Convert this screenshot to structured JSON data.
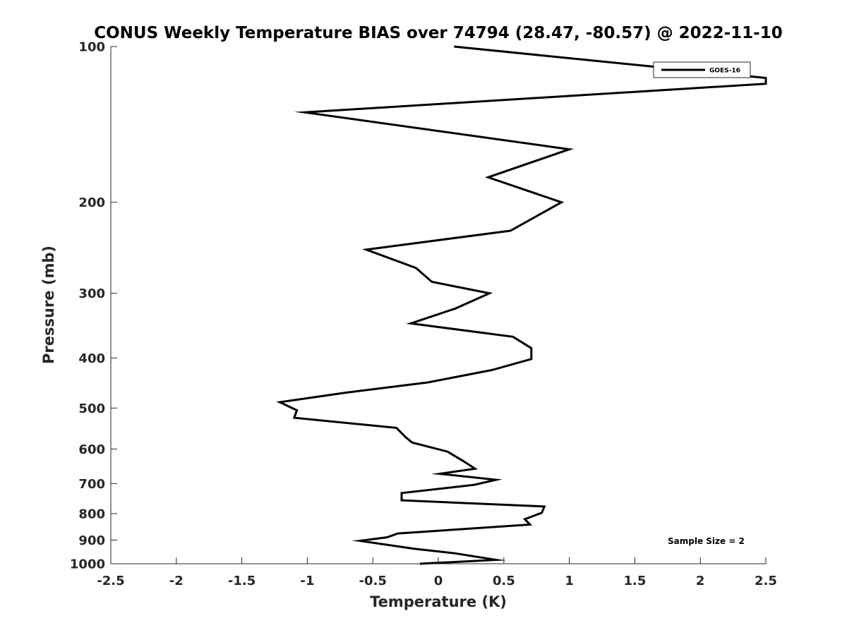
{
  "chart_data": {
    "type": "line",
    "title": "CONUS Weekly Temperature BIAS over 74794 (28.47, -80.57) @ 2022-11-10",
    "xlabel": "Temperature (K)",
    "ylabel": "Pressure (mb)",
    "xlim": [
      -2.5,
      2.5
    ],
    "ylim": [
      1000,
      100
    ],
    "yscale": "log",
    "y_reversed": true,
    "x_ticks": [
      -2.5,
      -2,
      -1.5,
      -1,
      -0.5,
      0,
      0.5,
      1,
      1.5,
      2,
      2.5
    ],
    "x_tick_labels": [
      "-2.5",
      "-2",
      "-1.5",
      "-1",
      "-0.5",
      "0",
      "0.5",
      "1",
      "1.5",
      "2",
      "2.5"
    ],
    "y_ticks": [
      100,
      200,
      300,
      400,
      500,
      600,
      700,
      800,
      900,
      1000
    ],
    "y_tick_labels": [
      "100",
      "200",
      "300",
      "400",
      "500",
      "600",
      "700",
      "800",
      "900",
      "1000"
    ],
    "grid": false,
    "legend_position": "top-right",
    "annotation": "Sample Size = 2",
    "series": [
      {
        "name": "GOES-16",
        "color": "#000000",
        "points": [
          {
            "x": 0.12,
            "y": 100
          },
          {
            "x": 2.5,
            "y": 115
          },
          {
            "x": 2.5,
            "y": 118
          },
          {
            "x": -1.02,
            "y": 134
          },
          {
            "x": 1.0,
            "y": 158
          },
          {
            "x": 0.38,
            "y": 179
          },
          {
            "x": 0.94,
            "y": 200
          },
          {
            "x": 0.55,
            "y": 227
          },
          {
            "x": -0.55,
            "y": 247
          },
          {
            "x": -0.17,
            "y": 268
          },
          {
            "x": -0.05,
            "y": 285
          },
          {
            "x": 0.39,
            "y": 300
          },
          {
            "x": 0.13,
            "y": 321
          },
          {
            "x": -0.21,
            "y": 343
          },
          {
            "x": 0.57,
            "y": 364
          },
          {
            "x": 0.71,
            "y": 383
          },
          {
            "x": 0.71,
            "y": 402
          },
          {
            "x": 0.41,
            "y": 422
          },
          {
            "x": -0.08,
            "y": 446
          },
          {
            "x": -0.71,
            "y": 467
          },
          {
            "x": -1.21,
            "y": 487
          },
          {
            "x": -1.08,
            "y": 505
          },
          {
            "x": -1.1,
            "y": 522
          },
          {
            "x": -0.32,
            "y": 546
          },
          {
            "x": -0.25,
            "y": 569
          },
          {
            "x": -0.2,
            "y": 583
          },
          {
            "x": 0.07,
            "y": 607
          },
          {
            "x": 0.19,
            "y": 633
          },
          {
            "x": 0.28,
            "y": 655
          },
          {
            "x": 0.01,
            "y": 670
          },
          {
            "x": 0.44,
            "y": 688
          },
          {
            "x": 0.27,
            "y": 704
          },
          {
            "x": -0.28,
            "y": 730
          },
          {
            "x": -0.28,
            "y": 754
          },
          {
            "x": 0.81,
            "y": 775
          },
          {
            "x": 0.79,
            "y": 797
          },
          {
            "x": 0.66,
            "y": 820
          },
          {
            "x": 0.7,
            "y": 840
          },
          {
            "x": -0.31,
            "y": 874
          },
          {
            "x": -0.39,
            "y": 889
          },
          {
            "x": -0.6,
            "y": 903
          },
          {
            "x": -0.19,
            "y": 935
          },
          {
            "x": 0.13,
            "y": 955
          },
          {
            "x": 0.44,
            "y": 983
          },
          {
            "x": -0.14,
            "y": 1000
          }
        ]
      }
    ]
  }
}
